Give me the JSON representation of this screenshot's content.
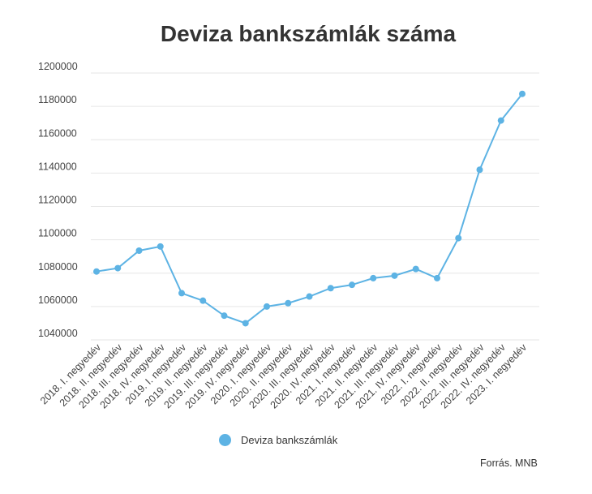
{
  "chart_data": {
    "type": "line",
    "title": "Deviza bankszámlák száma",
    "categories": [
      "2018. I. negyedév",
      "2018. II. negyedév",
      "2018. III. negyedév",
      "2018. IV. negyedév",
      "2019. I. negyedév",
      "2019. II. negyedév",
      "2019. III. negyedév",
      "2019. IV. negyedév",
      "2020. I. negyedév",
      "2020. II. negyedév",
      "2020. III. negyedév",
      "2020. IV. negyedév",
      "2021. I. negyedév",
      "2021. II. negyedév",
      "2021. III. negyedév",
      "2021. IV. negyedév",
      "2022. I. negyedév",
      "2022. II. negyedév",
      "2022. III. negyedév",
      "2022. IV. negyedév",
      "2023. I. negyedév"
    ],
    "series": [
      {
        "name": "Deviza bankszámlák",
        "color": "#5DB3E4",
        "values": [
          1081000,
          1083000,
          1093500,
          1096000,
          1068000,
          1063500,
          1054500,
          1050000,
          1060000,
          1062000,
          1066000,
          1071000,
          1073000,
          1077000,
          1078500,
          1082500,
          1077000,
          1101000,
          1142000,
          1171500,
          1187500
        ]
      }
    ],
    "yticks": [
      "1200000",
      "1180000",
      "1160000",
      "1140000",
      "1120000",
      "1100000",
      "1080000",
      "1060000",
      "1040000"
    ],
    "ylim": [
      1040000,
      1200000
    ],
    "grid": true,
    "legend_position": "bottom",
    "xlabel": "",
    "ylabel": ""
  },
  "source_note": "Forrás. MNB"
}
